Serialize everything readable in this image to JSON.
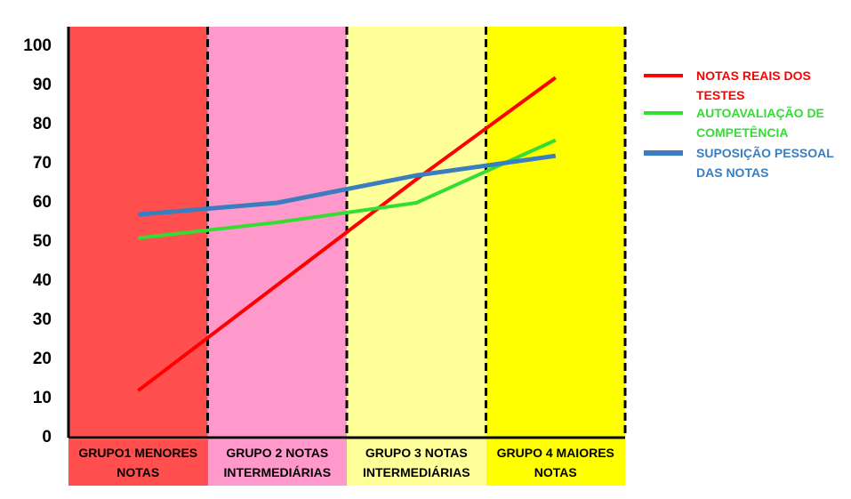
{
  "chart_data": {
    "type": "line",
    "categories": [
      "GRUPO1 MENORES NOTAS",
      "GRUPO 2 NOTAS INTERMEDIÁRIAS",
      "GRUPO 3 NOTAS INTERMEDIÁRIAS",
      "GRUPO 4 MAIORES NOTAS"
    ],
    "category_colors": [
      "#ff4f4f",
      "#ff99cc",
      "#ffff99",
      "#ffff00"
    ],
    "series": [
      {
        "name": "NOTAS REAIS DOS TESTES",
        "color": "#ff0000",
        "values": [
          12,
          39,
          66,
          92
        ]
      },
      {
        "name": "AUTOAVALIAÇÃO DE COMPETÊNCIA",
        "color": "#33dd33",
        "values": [
          51,
          55,
          60,
          76
        ]
      },
      {
        "name": "SUPOSIÇÃO PESSOAL DAS NOTAS",
        "color": "#3a7ebf",
        "values": [
          57,
          60,
          67,
          72
        ]
      }
    ],
    "ylim": [
      0,
      100
    ],
    "yticks": [
      0,
      10,
      20,
      30,
      40,
      50,
      60,
      70,
      80,
      90,
      100
    ],
    "legend": "right"
  }
}
